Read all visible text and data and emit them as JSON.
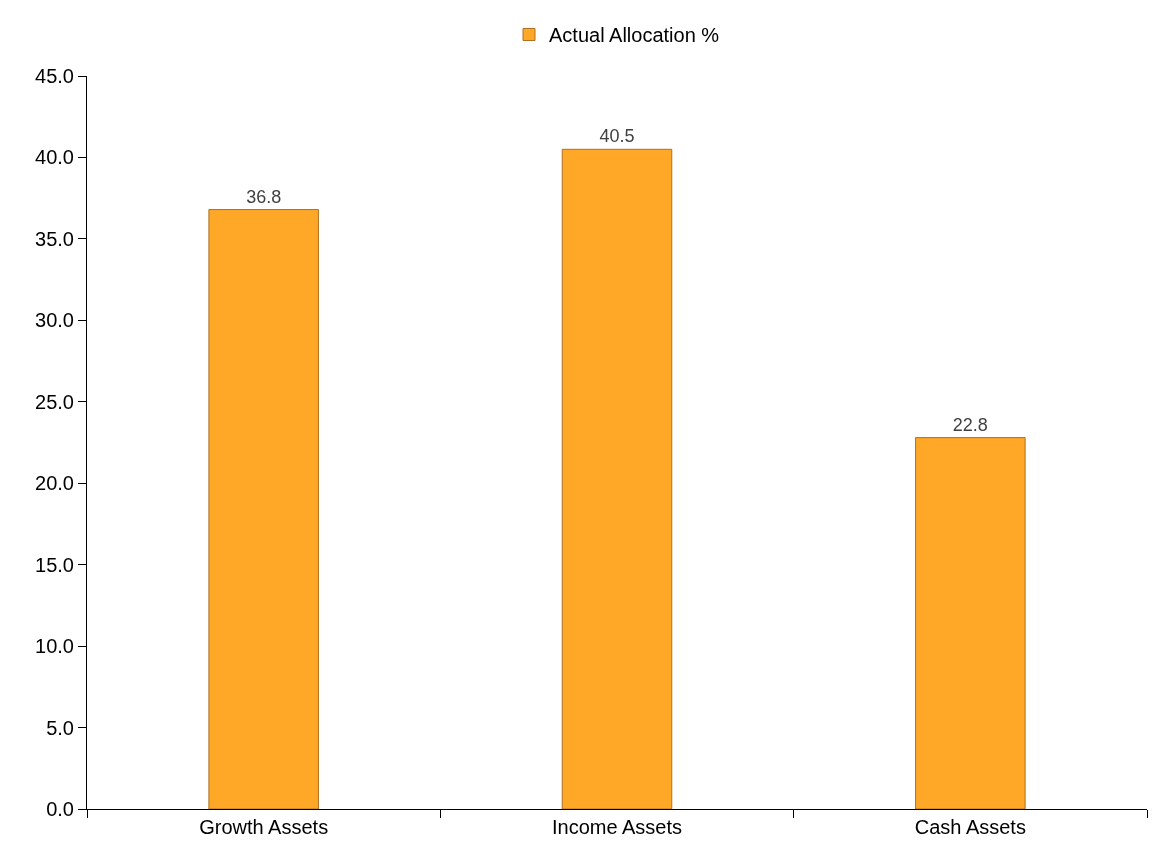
{
  "chart_data": {
    "type": "bar",
    "categories": [
      "Growth Assets",
      "Income Assets",
      "Cash Assets"
    ],
    "series": [
      {
        "name": "Actual Allocation %",
        "color": "#ffa726",
        "values": [
          36.8,
          40.5,
          22.8
        ]
      }
    ],
    "ylim": [
      0,
      45
    ],
    "yticks": [
      {
        "value": 0,
        "label": "0.0"
      },
      {
        "value": 5,
        "label": "5.0"
      },
      {
        "value": 10,
        "label": "10.0"
      },
      {
        "value": 15,
        "label": "15.0"
      },
      {
        "value": 20,
        "label": "20.0"
      },
      {
        "value": 25,
        "label": "25.0"
      },
      {
        "value": 30,
        "label": "30.0"
      },
      {
        "value": 35,
        "label": "35.0"
      },
      {
        "value": 40,
        "label": "40.0"
      },
      {
        "value": 45,
        "label": "45.0"
      }
    ],
    "data_labels": true,
    "grid": false,
    "legend": "top"
  }
}
